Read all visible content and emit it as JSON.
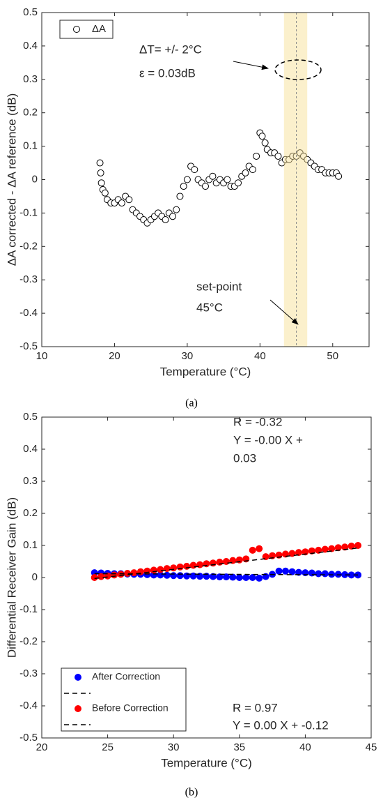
{
  "chart_data": [
    {
      "type": "scatter",
      "xlabel": "Temperature (°C)",
      "ylabel": "ΔA corrected - ΔA reference (dB)",
      "caption": "(a)",
      "xlim": [
        10,
        55
      ],
      "xticks": [
        10,
        20,
        30,
        40,
        50
      ],
      "ylim": [
        -0.5,
        0.5
      ],
      "yticks": [
        -0.5,
        -0.4,
        -0.3,
        -0.2,
        -0.1,
        0,
        0.1,
        0.2,
        0.3,
        0.4,
        0.5
      ],
      "highlight_x": [
        43.3,
        46.5
      ],
      "vline": 45,
      "legend": "upper left",
      "annotations": [
        "ΔT= +/- 2°C",
        "ε = 0.03dB",
        "set-point",
        "45°C"
      ],
      "series": [
        {
          "name": "ΔA",
          "color": "#000000",
          "x": [
            18,
            18.1,
            18.2,
            18.4,
            18.7,
            19,
            19.5,
            20,
            20.5,
            21,
            21.5,
            22,
            22.5,
            23,
            23.5,
            24,
            24.5,
            25,
            25.5,
            26,
            26.5,
            27,
            27.5,
            28,
            28.5,
            29,
            29.5,
            30,
            30.5,
            31,
            31.5,
            32,
            32.5,
            33,
            33.5,
            34,
            34.5,
            35,
            35.5,
            36,
            36.5,
            37,
            37.5,
            38,
            38.5,
            39,
            39.5,
            40,
            40.3,
            40.7,
            41,
            41.5,
            42,
            42.5,
            43,
            43.5,
            44,
            44.5,
            45,
            45.5,
            46,
            46.5,
            47,
            47.5,
            48,
            48.5,
            49,
            49.5,
            50,
            50.5,
            50.8
          ],
          "values": [
            0.05,
            0.02,
            -0.01,
            -0.03,
            -0.04,
            -0.06,
            -0.07,
            -0.07,
            -0.06,
            -0.07,
            -0.05,
            -0.06,
            -0.09,
            -0.1,
            -0.11,
            -0.12,
            -0.13,
            -0.12,
            -0.11,
            -0.1,
            -0.11,
            -0.12,
            -0.1,
            -0.11,
            -0.09,
            -0.05,
            -0.02,
            0.0,
            0.04,
            0.03,
            0.0,
            -0.01,
            -0.02,
            0.0,
            0.01,
            -0.01,
            0.0,
            -0.01,
            0.0,
            -0.02,
            -0.02,
            -0.01,
            0.01,
            0.02,
            0.04,
            0.03,
            0.07,
            0.14,
            0.13,
            0.11,
            0.09,
            0.08,
            0.08,
            0.07,
            0.05,
            0.06,
            0.06,
            0.07,
            0.07,
            0.08,
            0.07,
            0.06,
            0.05,
            0.04,
            0.03,
            0.03,
            0.02,
            0.02,
            0.02,
            0.02,
            0.01
          ]
        }
      ]
    },
    {
      "type": "scatter",
      "xlabel": "Temperature (°C)",
      "ylabel": "Differential Receiver Gain (dB)",
      "caption": "(b)",
      "xlim": [
        20,
        45
      ],
      "xticks": [
        20,
        25,
        30,
        35,
        40,
        45
      ],
      "ylim": [
        -0.5,
        0.5
      ],
      "yticks": [
        -0.5,
        -0.4,
        -0.3,
        -0.2,
        -0.1,
        0,
        0.1,
        0.2,
        0.3,
        0.4,
        0.5
      ],
      "legend": "lower left",
      "annotations": [
        "R = -0.32",
        "Y = -0.00 X +",
        "0.03",
        "R = 0.97",
        "Y = 0.00 X + -0.12"
      ],
      "series": [
        {
          "name": "After Correction",
          "color": "#0000ff",
          "x": [
            24,
            24.5,
            25,
            25.5,
            26,
            26.5,
            27,
            27.5,
            28,
            28.5,
            29,
            29.5,
            30,
            30.5,
            31,
            31.5,
            32,
            32.5,
            33,
            33.5,
            34,
            34.5,
            35,
            35.5,
            36,
            36.5,
            37,
            37.5,
            38,
            38.5,
            39,
            39.5,
            40,
            40.5,
            41,
            41.5,
            42,
            42.5,
            43,
            43.5,
            44
          ],
          "values": [
            0.015,
            0.014,
            0.013,
            0.012,
            0.012,
            0.011,
            0.01,
            0.01,
            0.009,
            0.008,
            0.008,
            0.007,
            0.006,
            0.006,
            0.005,
            0.005,
            0.004,
            0.004,
            0.003,
            0.002,
            0.002,
            0.001,
            0.0,
            0.0,
            0.0,
            -0.002,
            0.003,
            0.01,
            0.02,
            0.02,
            0.018,
            0.016,
            0.015,
            0.014,
            0.012,
            0.012,
            0.01,
            0.01,
            0.009,
            0.008,
            0.008
          ]
        },
        {
          "name": "Before Correction",
          "color": "#ff0000",
          "x": [
            24,
            24.5,
            25,
            25.5,
            26,
            26.5,
            27,
            27.5,
            28,
            28.5,
            29,
            29.5,
            30,
            30.5,
            31,
            31.5,
            32,
            32.5,
            33,
            33.5,
            34,
            34.5,
            35,
            35.5,
            36,
            36.5,
            37,
            37.5,
            38,
            38.5,
            39,
            39.5,
            40,
            40.5,
            41,
            41.5,
            42,
            42.5,
            43,
            43.5,
            44
          ],
          "values": [
            0,
            0.003,
            0.005,
            0.008,
            0.01,
            0.013,
            0.015,
            0.018,
            0.02,
            0.023,
            0.025,
            0.028,
            0.03,
            0.033,
            0.035,
            0.038,
            0.04,
            0.043,
            0.045,
            0.048,
            0.05,
            0.053,
            0.055,
            0.058,
            0.085,
            0.09,
            0.065,
            0.068,
            0.07,
            0.073,
            0.075,
            0.078,
            0.08,
            0.083,
            0.085,
            0.088,
            0.09,
            0.093,
            0.095,
            0.098,
            0.1
          ]
        }
      ],
      "fits": [
        {
          "color": "#000000",
          "x": [
            24,
            44
          ],
          "values": [
            0.012,
            0.008
          ]
        },
        {
          "color": "#000000",
          "x": [
            24,
            44
          ],
          "values": [
            -0.003,
            0.092
          ]
        }
      ]
    }
  ]
}
